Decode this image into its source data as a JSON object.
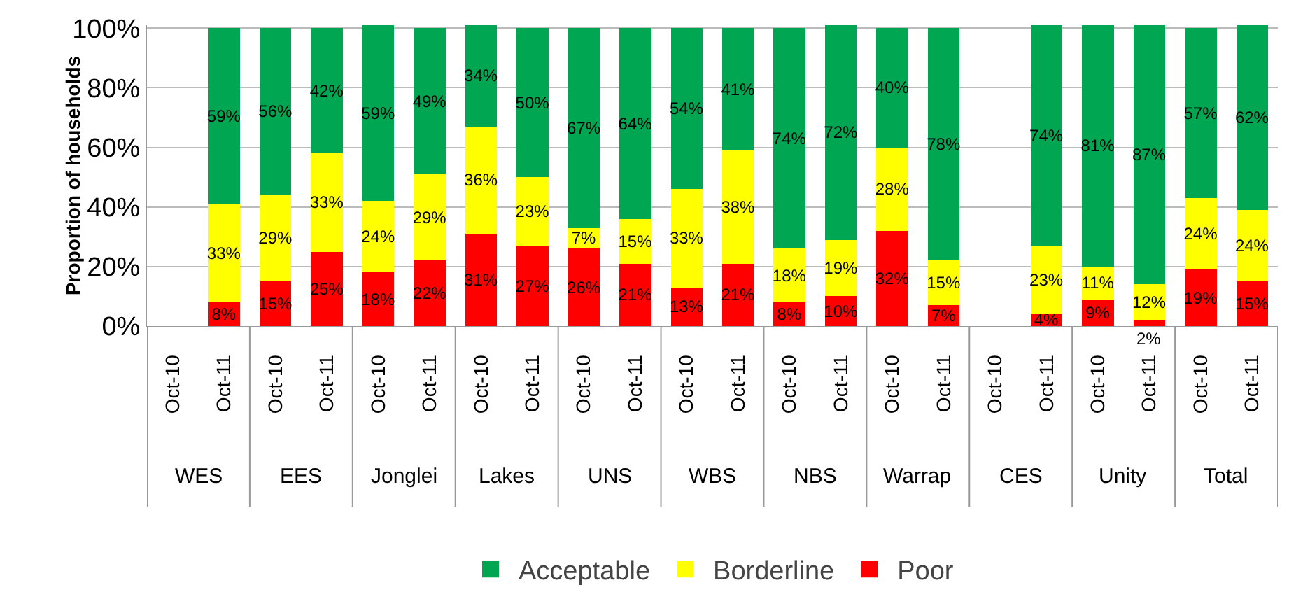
{
  "chart_data": {
    "type": "bar",
    "stacked": true,
    "ylabel": "Proportion of households",
    "categories": [
      "Oct-10",
      "Oct-11",
      "Oct-10",
      "Oct-11",
      "Oct-10",
      "Oct-11",
      "Oct-10",
      "Oct-11",
      "Oct-10",
      "Oct-11",
      "Oct-10",
      "Oct-11",
      "Oct-10",
      "Oct-11",
      "Oct-10",
      "Oct-11",
      "Oct-10",
      "Oct-11",
      "Oct-10",
      "Oct-11",
      "Oct-10",
      "Oct-11"
    ],
    "annotations": [
      "WES",
      "EES",
      "Jonglei",
      "Lakes",
      "UNS",
      "WBS",
      "NBS",
      "Warrap",
      "CES",
      "Unity",
      "Total"
    ],
    "series": [
      {
        "name": "Poor",
        "color": "#ff0000",
        "values": [
          null,
          8,
          15,
          25,
          18,
          22,
          31,
          27,
          26,
          21,
          13,
          21,
          8,
          10,
          32,
          7,
          null,
          4,
          9,
          2,
          19,
          15
        ],
        "value_labels": [
          null,
          "8%",
          "15%",
          "25%",
          "18%",
          "22%",
          "31%",
          "27%",
          "26%",
          "21%",
          "13%",
          "21%",
          "8%",
          "10%",
          "32%",
          "7%",
          null,
          "4%",
          "9%",
          "2%",
          "19%",
          "15%"
        ]
      },
      {
        "name": "Borderline",
        "color": "#ffff00",
        "values": [
          null,
          33,
          29,
          33,
          24,
          29,
          36,
          23,
          7,
          15,
          33,
          38,
          18,
          19,
          28,
          15,
          null,
          23,
          11,
          12,
          24,
          24
        ],
        "value_labels": [
          null,
          "33%",
          "29%",
          "33%",
          "24%",
          "29%",
          "36%",
          "23%",
          "7%",
          "15%",
          "33%",
          "38%",
          "18%",
          "19%",
          "28%",
          "15%",
          null,
          "23%",
          "11%",
          "12%",
          "24%",
          "24%"
        ]
      },
      {
        "name": "Acceptable",
        "color": "#00a651",
        "values": [
          null,
          59,
          56,
          42,
          59,
          49,
          34,
          50,
          67,
          64,
          54,
          41,
          74,
          72,
          40,
          78,
          null,
          74,
          81,
          87,
          57,
          62
        ],
        "value_labels": [
          null,
          "59%",
          "56%",
          "42%",
          "59%",
          "49%",
          "34%",
          "50%",
          "67%",
          "64%",
          "54%",
          "41%",
          "74%",
          "72%",
          "40%",
          "78%",
          null,
          "74%",
          "81%",
          "87%",
          "57%",
          "62%"
        ]
      }
    ],
    "ylim": [
      0,
      101
    ],
    "yticks": [
      {
        "value": 0,
        "label": "0%"
      },
      {
        "value": 20,
        "label": "20%"
      },
      {
        "value": 40,
        "label": "40%"
      },
      {
        "value": 60,
        "label": "60%"
      },
      {
        "value": 80,
        "label": "80%"
      },
      {
        "value": 100,
        "label": "100%"
      }
    ],
    "grid": "y",
    "legend": "bottom"
  }
}
